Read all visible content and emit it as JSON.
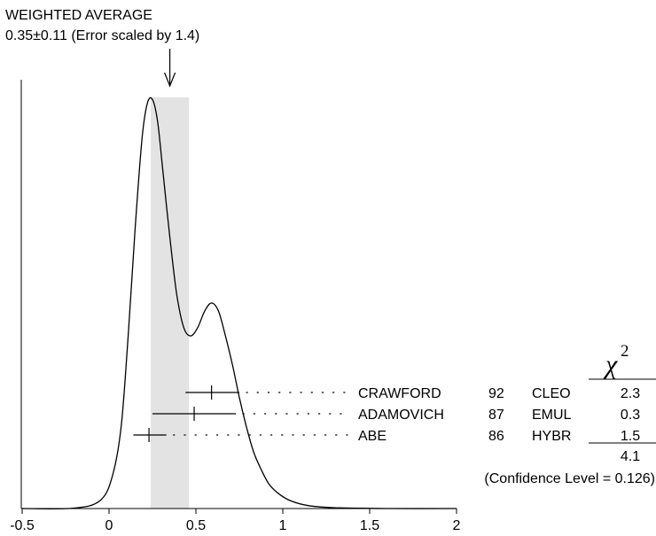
{
  "chart_data": {
    "type": "ideogram",
    "title": "WEIGHTED AVERAGE",
    "subtitle": "0.35±0.11 (Error scaled by 1.4)",
    "weighted_average": {
      "value": 0.35,
      "error": 0.11,
      "band": [
        0.24,
        0.46
      ]
    },
    "xlim": [
      -0.5,
      2.0
    ],
    "x_ticks": [
      {
        "value": -0.5,
        "label": "-0.5"
      },
      {
        "value": 0,
        "label": "0"
      },
      {
        "value": 0.5,
        "label": "0.5"
      },
      {
        "value": 1,
        "label": "1"
      },
      {
        "value": 1.5,
        "label": "1.5"
      },
      {
        "value": 2,
        "label": "2"
      }
    ],
    "curve": {
      "x": [
        -0.5,
        -0.2,
        -0.05,
        0.02,
        0.07,
        0.11,
        0.15,
        0.19,
        0.22,
        0.25,
        0.28,
        0.31,
        0.35,
        0.39,
        0.43,
        0.47,
        0.51,
        0.55,
        0.59,
        0.63,
        0.67,
        0.71,
        0.75,
        0.79,
        0.83,
        0.87,
        0.92,
        0.98,
        1.05,
        1.15,
        1.3,
        1.6,
        2.0
      ],
      "y": [
        0,
        0.001,
        0.02,
        0.08,
        0.2,
        0.42,
        0.68,
        0.9,
        0.985,
        0.995,
        0.94,
        0.82,
        0.66,
        0.52,
        0.44,
        0.42,
        0.44,
        0.48,
        0.5,
        0.48,
        0.42,
        0.35,
        0.27,
        0.2,
        0.14,
        0.1,
        0.06,
        0.035,
        0.018,
        0.007,
        0.002,
        0,
        0
      ]
    },
    "measurements": [
      {
        "name": "CRAWFORD",
        "year": "92",
        "tech": "CLEO",
        "value": 0.59,
        "low": 0.44,
        "high": 0.75,
        "chi2": "2.3"
      },
      {
        "name": "ADAMOVICH",
        "year": "87",
        "tech": "EMUL",
        "value": 0.49,
        "low": 0.25,
        "high": 0.73,
        "chi2": "0.3"
      },
      {
        "name": "ABE",
        "year": "86",
        "tech": "HYBR",
        "value": 0.23,
        "low": 0.14,
        "high": 0.33,
        "chi2": "1.5"
      }
    ],
    "chi2_header": "χ",
    "chi2_exponent": "2",
    "chi2_total": "4.1",
    "confidence_text": "(Confidence Level = 0.126)"
  },
  "colors": {
    "band": "#e3e3e3",
    "line": "#000000"
  }
}
